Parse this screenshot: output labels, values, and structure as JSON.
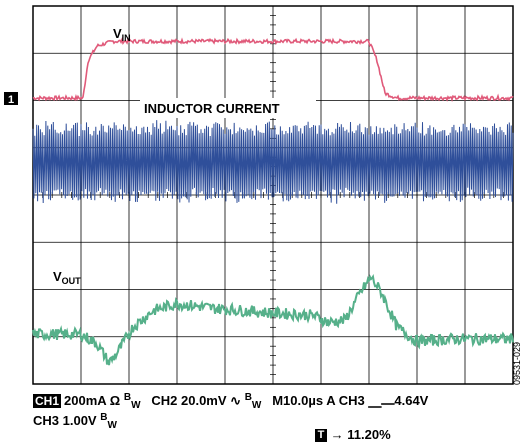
{
  "chart_data": {
    "type": "line",
    "title": "",
    "xlabel": "",
    "ylabel": "",
    "grid": true,
    "divisions": {
      "x": 10,
      "y": 8
    },
    "series": [
      {
        "name": "VIN",
        "color": "#e05a7a",
        "values_div": [
          {
            "x": 0.0,
            "y": 0.0
          },
          {
            "x": 1.25,
            "y": 0.0
          },
          {
            "x": 1.38,
            "y": 0.8
          },
          {
            "x": 1.6,
            "y": 1.1
          },
          {
            "x": 2.0,
            "y": 1.2
          },
          {
            "x": 8.4,
            "y": 1.2
          },
          {
            "x": 8.6,
            "y": 0.8
          },
          {
            "x": 8.8,
            "y": 0.1
          },
          {
            "x": 9.1,
            "y": 0.0
          },
          {
            "x": 12.0,
            "y": 0.0
          }
        ]
      },
      {
        "name": "INDUCTOR CURRENT",
        "color": "#2f4f9a",
        "values_div": [
          {
            "x": 0.0,
            "y": -1.35
          },
          {
            "x": 12.0,
            "y": -1.35
          }
        ],
        "ripple_div": 0.9
      },
      {
        "name": "VOUT",
        "color": "#56b08a",
        "values_div": [
          {
            "x": 0.0,
            "y": -5.0
          },
          {
            "x": 1.2,
            "y": -5.0
          },
          {
            "x": 1.6,
            "y": -5.2
          },
          {
            "x": 1.9,
            "y": -5.6
          },
          {
            "x": 2.1,
            "y": -5.4
          },
          {
            "x": 2.5,
            "y": -4.85
          },
          {
            "x": 3.0,
            "y": -4.5
          },
          {
            "x": 3.6,
            "y": -4.35
          },
          {
            "x": 4.5,
            "y": -4.45
          },
          {
            "x": 6.0,
            "y": -4.55
          },
          {
            "x": 7.0,
            "y": -4.6
          },
          {
            "x": 7.4,
            "y": -4.75
          },
          {
            "x": 7.8,
            "y": -4.7
          },
          {
            "x": 8.2,
            "y": -4.1
          },
          {
            "x": 8.45,
            "y": -3.8
          },
          {
            "x": 8.7,
            "y": -4.1
          },
          {
            "x": 9.1,
            "y": -4.85
          },
          {
            "x": 9.6,
            "y": -5.15
          },
          {
            "x": 10.5,
            "y": -5.1
          },
          {
            "x": 12.0,
            "y": -5.1
          }
        ]
      }
    ],
    "ch1_marker": "1",
    "trace_labels": {
      "vin_main": "V",
      "vin_sub": "IN",
      "inductor": "INDUCTOR CURRENT",
      "vout_main": "V",
      "vout_sub": "OUT"
    },
    "side_code": "09531-029"
  },
  "footer": {
    "ch1_box": "CH1",
    "ch1_rest": "200mA Ω",
    "bw": "B",
    "bw_sub": "W",
    "ch2": "CH2 20.0mV",
    "ch2_symbol": "∿",
    "timebase": "M10.0µs  A CH3",
    "trigger_symbol": "⎽⎼",
    "trigger_level": "4.64V",
    "ch3": "CH3 1.00V",
    "t_box": "T",
    "t_arrow": "→",
    "t_position": "11.20%"
  }
}
